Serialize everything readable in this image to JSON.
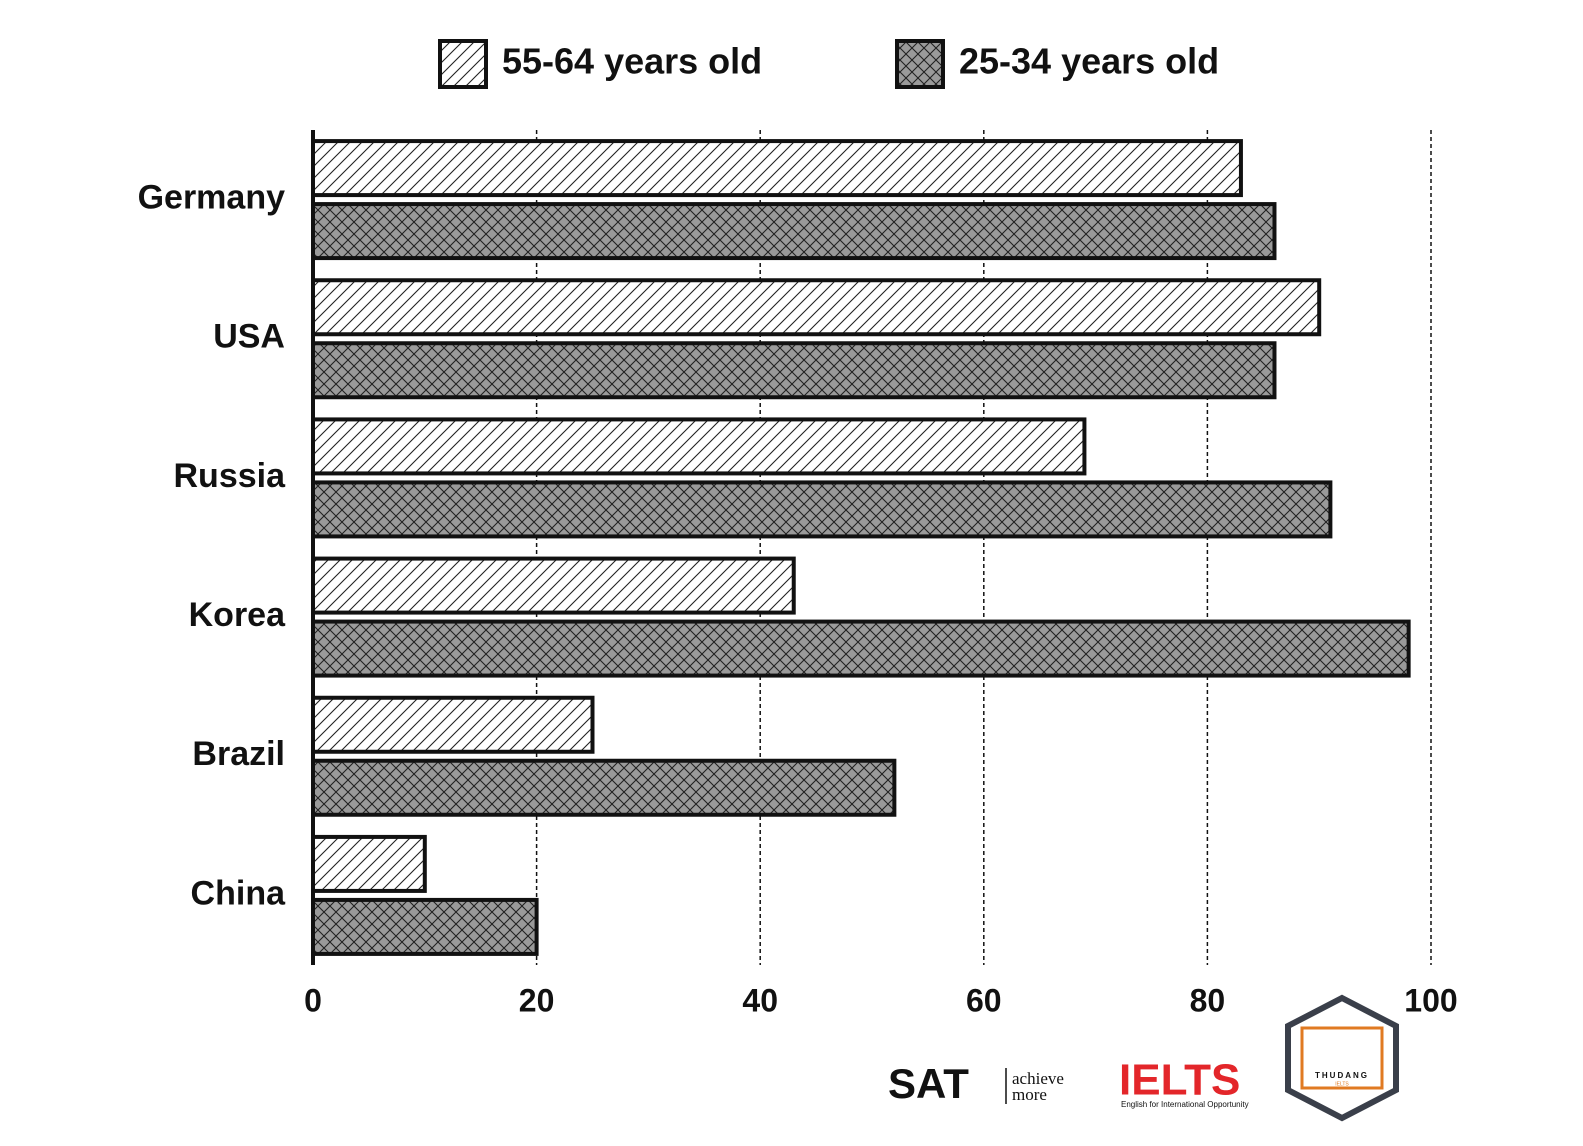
{
  "chart_data": {
    "type": "hbar",
    "categories": [
      "Germany",
      "USA",
      "Russia",
      "Korea",
      "Brazil",
      "China"
    ],
    "series": [
      {
        "name": "55-64 years old",
        "color": "#ffffff",
        "pattern": "hatch",
        "values": [
          83,
          90,
          69,
          43,
          25,
          10
        ]
      },
      {
        "name": "25-34 years old",
        "color": "#9a9a9a",
        "pattern": "crosshatch",
        "values": [
          86,
          86,
          91,
          98,
          52,
          20
        ]
      }
    ],
    "xlim": [
      0,
      100
    ],
    "xticks": [
      0,
      20,
      40,
      60,
      80,
      100
    ],
    "grid": true
  },
  "footer": {
    "sat": "SAT",
    "sat_tagline": [
      "achieve",
      "more"
    ],
    "ielts": "IELTS",
    "ielts_tagline": "English for International Opportunity",
    "badge": [
      "THUDANG",
      "IELTS"
    ]
  }
}
